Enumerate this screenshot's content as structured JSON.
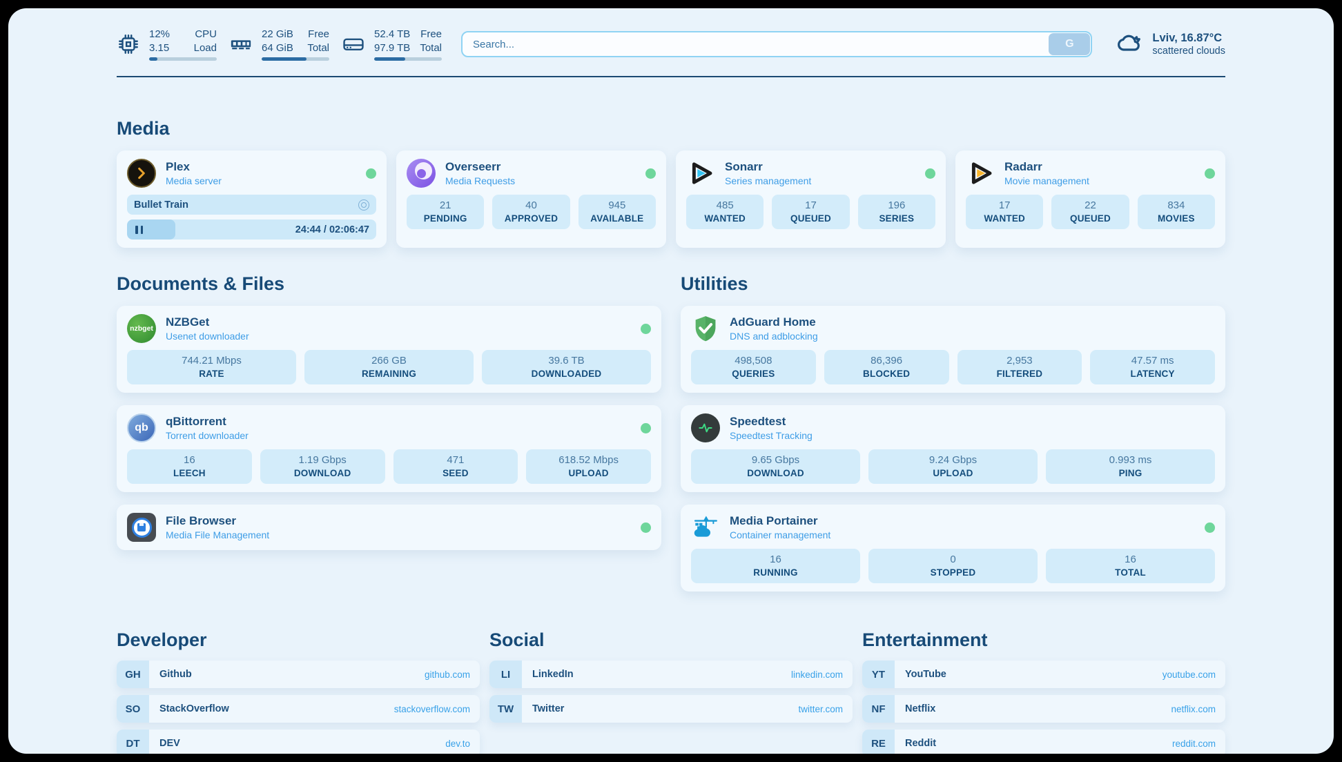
{
  "colors": {
    "accent_green": "#6ed69b",
    "navy_text": "#1d507e",
    "link_blue": "#38a1e8",
    "tile_blue": "#d3ecfa",
    "progress_fill": "#2c6ca3"
  },
  "header": {
    "stats": [
      {
        "icon": "cpu-icon",
        "values": [
          "12%",
          "3.15"
        ],
        "labels": [
          "CPU",
          "Load"
        ],
        "progress_pct": 12
      },
      {
        "icon": "ram-icon",
        "values": [
          "22 GiB",
          "64 GiB"
        ],
        "labels": [
          "Free",
          "Total"
        ],
        "progress_pct": 66
      },
      {
        "icon": "disk-icon",
        "values": [
          "52.4 TB",
          "97.9 TB"
        ],
        "labels": [
          "Free",
          "Total"
        ],
        "progress_pct": 46
      }
    ],
    "search": {
      "placeholder": "Search...",
      "button_label": "G"
    },
    "weather": {
      "icon": "cloud-icon",
      "location": "Lviv, 16.87°C",
      "condition": "scattered clouds"
    }
  },
  "sections": {
    "media": "Media",
    "documents": "Documents & Files",
    "utilities": "Utilities"
  },
  "apps": {
    "plex": {
      "name": "Plex",
      "subtitle": "Media server",
      "online": true,
      "now_playing": {
        "title": "Bullet Train",
        "time": "24:44 / 02:06:47",
        "progress_pct": 19.5
      }
    },
    "overseerr": {
      "name": "Overseerr",
      "subtitle": "Media Requests",
      "online": true,
      "stats": [
        {
          "value": "21",
          "label": "PENDING"
        },
        {
          "value": "40",
          "label": "APPROVED"
        },
        {
          "value": "945",
          "label": "AVAILABLE"
        }
      ]
    },
    "sonarr": {
      "name": "Sonarr",
      "subtitle": "Series management",
      "online": true,
      "stats": [
        {
          "value": "485",
          "label": "WANTED"
        },
        {
          "value": "17",
          "label": "QUEUED"
        },
        {
          "value": "196",
          "label": "SERIES"
        }
      ]
    },
    "radarr": {
      "name": "Radarr",
      "subtitle": "Movie management",
      "online": true,
      "stats": [
        {
          "value": "17",
          "label": "WANTED"
        },
        {
          "value": "22",
          "label": "QUEUED"
        },
        {
          "value": "834",
          "label": "MOVIES"
        }
      ]
    },
    "nzbget": {
      "name": "NZBGet",
      "subtitle": "Usenet downloader",
      "online": true,
      "icon_text": "nzbget",
      "stats": [
        {
          "value": "744.21 Mbps",
          "label": "RATE"
        },
        {
          "value": "266 GB",
          "label": "REMAINING"
        },
        {
          "value": "39.6 TB",
          "label": "DOWNLOADED"
        }
      ]
    },
    "qbittorrent": {
      "name": "qBittorrent",
      "subtitle": "Torrent downloader",
      "online": true,
      "icon_text": "qb",
      "stats": [
        {
          "value": "16",
          "label": "LEECH"
        },
        {
          "value": "1.19 Gbps",
          "label": "DOWNLOAD"
        },
        {
          "value": "471",
          "label": "SEED"
        },
        {
          "value": "618.52 Mbps",
          "label": "UPLOAD"
        }
      ]
    },
    "filebrowser": {
      "name": "File Browser",
      "subtitle": "Media File Management",
      "online": true
    },
    "adguard": {
      "name": "AdGuard Home",
      "subtitle": "DNS and adblocking",
      "online": false,
      "stats": [
        {
          "value": "498,508",
          "label": "QUERIES"
        },
        {
          "value": "86,396",
          "label": "BLOCKED"
        },
        {
          "value": "2,953",
          "label": "FILTERED"
        },
        {
          "value": "47.57 ms",
          "label": "LATENCY"
        }
      ]
    },
    "speedtest": {
      "name": "Speedtest",
      "subtitle": "Speedtest Tracking",
      "online": false,
      "stats": [
        {
          "value": "9.65 Gbps",
          "label": "DOWNLOAD"
        },
        {
          "value": "9.24 Gbps",
          "label": "UPLOAD"
        },
        {
          "value": "0.993 ms",
          "label": "PING"
        }
      ]
    },
    "portainer": {
      "name": "Media Portainer",
      "subtitle": "Container management",
      "online": true,
      "stats": [
        {
          "value": "16",
          "label": "RUNNING"
        },
        {
          "value": "0",
          "label": "STOPPED"
        },
        {
          "value": "16",
          "label": "TOTAL"
        }
      ]
    }
  },
  "bookmarks": [
    {
      "title": "Developer",
      "links": [
        {
          "abbr": "GH",
          "name": "Github",
          "url": "github.com"
        },
        {
          "abbr": "SO",
          "name": "StackOverflow",
          "url": "stackoverflow.com"
        },
        {
          "abbr": "DT",
          "name": "DEV",
          "url": "dev.to"
        }
      ]
    },
    {
      "title": "Social",
      "links": [
        {
          "abbr": "LI",
          "name": "LinkedIn",
          "url": "linkedin.com"
        },
        {
          "abbr": "TW",
          "name": "Twitter",
          "url": "twitter.com"
        }
      ]
    },
    {
      "title": "Entertainment",
      "links": [
        {
          "abbr": "YT",
          "name": "YouTube",
          "url": "youtube.com"
        },
        {
          "abbr": "NF",
          "name": "Netflix",
          "url": "netflix.com"
        },
        {
          "abbr": "RE",
          "name": "Reddit",
          "url": "reddit.com"
        }
      ]
    }
  ]
}
